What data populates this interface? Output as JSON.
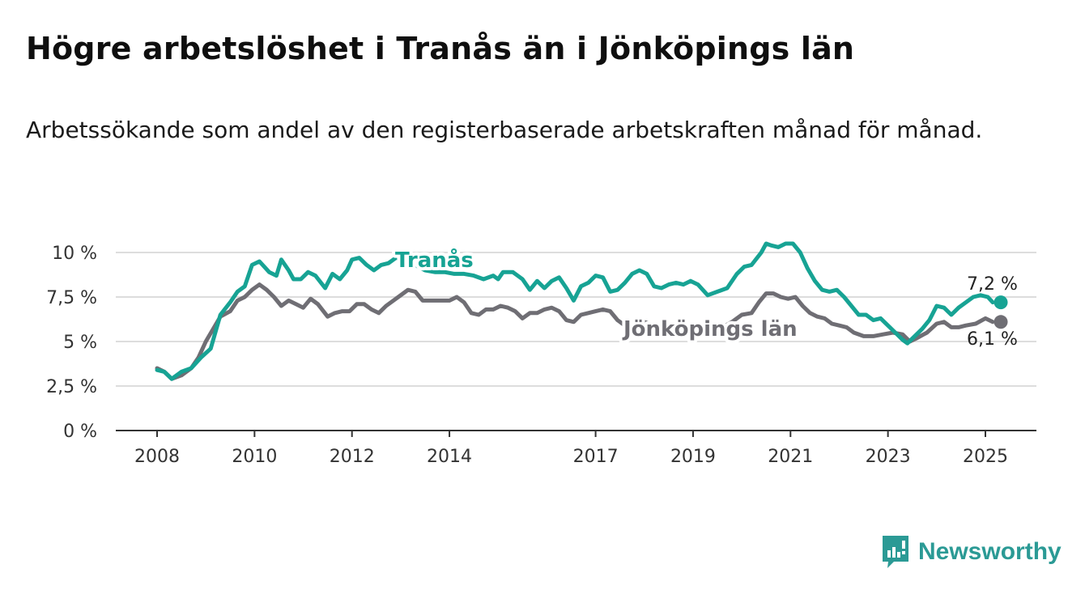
{
  "title": "Högre arbetslöshet i Tranås än i Jönköpings län",
  "subtitle": "Arbetssökande som andel av den registerbaserade arbetskraften månad för månad.",
  "brand": "Newsworthy",
  "colors": {
    "tranas": "#17a394",
    "jonkoping": "#6f6e74",
    "grid": "#dddddd",
    "axis": "#333333",
    "brand": "#2b9a95"
  },
  "chart_data": {
    "type": "line",
    "ylim": [
      0,
      10
    ],
    "yticks": [
      0,
      2.5,
      5,
      7.5,
      10
    ],
    "ytick_labels": [
      "0 %",
      "2,5 %",
      "5 %",
      "7,5 %",
      "10 %"
    ],
    "xticks": [
      2008,
      2010,
      2012,
      2014,
      2017,
      2019,
      2021,
      2023,
      2025
    ],
    "xtick_labels": [
      "2008",
      "2010",
      "2012",
      "2014",
      "2017",
      "2019",
      "2021",
      "2023",
      "2025"
    ],
    "grid": true,
    "series": [
      {
        "name": "Tranås",
        "end_label": "7,2 %",
        "points": [
          [
            2008.0,
            3.4
          ],
          [
            2008.15,
            3.3
          ],
          [
            2008.3,
            2.9
          ],
          [
            2008.5,
            3.3
          ],
          [
            2008.7,
            3.5
          ],
          [
            2008.9,
            4.1
          ],
          [
            2009.1,
            4.6
          ],
          [
            2009.3,
            6.5
          ],
          [
            2009.5,
            7.2
          ],
          [
            2009.65,
            7.8
          ],
          [
            2009.8,
            8.1
          ],
          [
            2009.95,
            9.3
          ],
          [
            2010.1,
            9.5
          ],
          [
            2010.3,
            8.9
          ],
          [
            2010.45,
            8.7
          ],
          [
            2010.55,
            9.6
          ],
          [
            2010.7,
            9.0
          ],
          [
            2010.8,
            8.5
          ],
          [
            2010.95,
            8.5
          ],
          [
            2011.1,
            8.9
          ],
          [
            2011.25,
            8.7
          ],
          [
            2011.45,
            8.0
          ],
          [
            2011.6,
            8.8
          ],
          [
            2011.75,
            8.5
          ],
          [
            2011.9,
            9.0
          ],
          [
            2012.0,
            9.6
          ],
          [
            2012.15,
            9.7
          ],
          [
            2012.3,
            9.3
          ],
          [
            2012.45,
            9.0
          ],
          [
            2012.6,
            9.3
          ],
          [
            2012.75,
            9.4
          ],
          [
            2012.9,
            9.7
          ],
          [
            2013.1,
            9.6
          ],
          [
            2013.3,
            9.3
          ],
          [
            2013.5,
            9.0
          ],
          [
            2013.7,
            8.9
          ],
          [
            2013.9,
            8.9
          ],
          [
            2014.1,
            8.8
          ],
          [
            2014.3,
            8.8
          ],
          [
            2014.5,
            8.7
          ],
          [
            2014.7,
            8.5
          ],
          [
            2014.9,
            8.7
          ],
          [
            2015.0,
            8.5
          ],
          [
            2015.1,
            8.9
          ],
          [
            2015.3,
            8.9
          ],
          [
            2015.5,
            8.5
          ],
          [
            2015.65,
            7.9
          ],
          [
            2015.8,
            8.4
          ],
          [
            2015.95,
            8.0
          ],
          [
            2016.1,
            8.4
          ],
          [
            2016.25,
            8.6
          ],
          [
            2016.4,
            8.0
          ],
          [
            2016.55,
            7.3
          ],
          [
            2016.7,
            8.1
          ],
          [
            2016.85,
            8.3
          ],
          [
            2017.0,
            8.7
          ],
          [
            2017.15,
            8.6
          ],
          [
            2017.3,
            7.8
          ],
          [
            2017.45,
            7.9
          ],
          [
            2017.6,
            8.3
          ],
          [
            2017.75,
            8.8
          ],
          [
            2017.9,
            9.0
          ],
          [
            2018.05,
            8.8
          ],
          [
            2018.2,
            8.1
          ],
          [
            2018.35,
            8.0
          ],
          [
            2018.5,
            8.2
          ],
          [
            2018.65,
            8.3
          ],
          [
            2018.8,
            8.2
          ],
          [
            2018.95,
            8.4
          ],
          [
            2019.1,
            8.2
          ],
          [
            2019.3,
            7.6
          ],
          [
            2019.5,
            7.8
          ],
          [
            2019.7,
            8.0
          ],
          [
            2019.9,
            8.8
          ],
          [
            2020.05,
            9.2
          ],
          [
            2020.2,
            9.3
          ],
          [
            2020.4,
            10.0
          ],
          [
            2020.5,
            10.5
          ],
          [
            2020.6,
            10.4
          ],
          [
            2020.75,
            10.3
          ],
          [
            2020.9,
            10.5
          ],
          [
            2021.05,
            10.5
          ],
          [
            2021.2,
            10.0
          ],
          [
            2021.35,
            9.1
          ],
          [
            2021.5,
            8.4
          ],
          [
            2021.65,
            7.9
          ],
          [
            2021.8,
            7.8
          ],
          [
            2021.95,
            7.9
          ],
          [
            2022.1,
            7.5
          ],
          [
            2022.25,
            7.0
          ],
          [
            2022.4,
            6.5
          ],
          [
            2022.55,
            6.5
          ],
          [
            2022.7,
            6.2
          ],
          [
            2022.85,
            6.3
          ],
          [
            2023.0,
            5.9
          ],
          [
            2023.15,
            5.5
          ],
          [
            2023.3,
            5.1
          ],
          [
            2023.4,
            4.9
          ],
          [
            2023.55,
            5.3
          ],
          [
            2023.7,
            5.7
          ],
          [
            2023.85,
            6.2
          ],
          [
            2024.0,
            7.0
          ],
          [
            2024.15,
            6.9
          ],
          [
            2024.3,
            6.5
          ],
          [
            2024.45,
            6.9
          ],
          [
            2024.6,
            7.2
          ],
          [
            2024.75,
            7.5
          ],
          [
            2024.9,
            7.6
          ],
          [
            2025.05,
            7.5
          ],
          [
            2025.15,
            7.2
          ]
        ]
      },
      {
        "name": "Jönköpings län",
        "end_label": "6,1 %",
        "points": [
          [
            2008.0,
            3.5
          ],
          [
            2008.15,
            3.3
          ],
          [
            2008.3,
            2.9
          ],
          [
            2008.5,
            3.1
          ],
          [
            2008.7,
            3.5
          ],
          [
            2008.85,
            4.1
          ],
          [
            2009.0,
            5.0
          ],
          [
            2009.15,
            5.7
          ],
          [
            2009.3,
            6.4
          ],
          [
            2009.5,
            6.7
          ],
          [
            2009.65,
            7.3
          ],
          [
            2009.8,
            7.5
          ],
          [
            2009.95,
            7.9
          ],
          [
            2010.1,
            8.2
          ],
          [
            2010.25,
            7.9
          ],
          [
            2010.4,
            7.5
          ],
          [
            2010.55,
            7.0
          ],
          [
            2010.7,
            7.3
          ],
          [
            2010.85,
            7.1
          ],
          [
            2011.0,
            6.9
          ],
          [
            2011.15,
            7.4
          ],
          [
            2011.3,
            7.1
          ],
          [
            2011.5,
            6.4
          ],
          [
            2011.65,
            6.6
          ],
          [
            2011.8,
            6.7
          ],
          [
            2011.95,
            6.7
          ],
          [
            2012.1,
            7.1
          ],
          [
            2012.25,
            7.1
          ],
          [
            2012.4,
            6.8
          ],
          [
            2012.55,
            6.6
          ],
          [
            2012.7,
            7.0
          ],
          [
            2012.85,
            7.3
          ],
          [
            2013.0,
            7.6
          ],
          [
            2013.15,
            7.9
          ],
          [
            2013.3,
            7.8
          ],
          [
            2013.45,
            7.3
          ],
          [
            2013.6,
            7.3
          ],
          [
            2013.8,
            7.3
          ],
          [
            2014.0,
            7.3
          ],
          [
            2014.15,
            7.5
          ],
          [
            2014.3,
            7.2
          ],
          [
            2014.45,
            6.6
          ],
          [
            2014.6,
            6.5
          ],
          [
            2014.75,
            6.8
          ],
          [
            2014.9,
            6.8
          ],
          [
            2015.05,
            7.0
          ],
          [
            2015.2,
            6.9
          ],
          [
            2015.35,
            6.7
          ],
          [
            2015.5,
            6.3
          ],
          [
            2015.65,
            6.6
          ],
          [
            2015.8,
            6.6
          ],
          [
            2015.95,
            6.8
          ],
          [
            2016.1,
            6.9
          ],
          [
            2016.25,
            6.7
          ],
          [
            2016.4,
            6.2
          ],
          [
            2016.55,
            6.1
          ],
          [
            2016.7,
            6.5
          ],
          [
            2016.85,
            6.6
          ],
          [
            2017.0,
            6.7
          ],
          [
            2017.15,
            6.8
          ],
          [
            2017.3,
            6.7
          ],
          [
            2017.45,
            6.2
          ],
          [
            2017.6,
            5.9
          ],
          [
            2017.8,
            6.0
          ],
          [
            2018.0,
            6.1
          ],
          [
            2018.2,
            5.9
          ],
          [
            2018.4,
            5.8
          ],
          [
            2018.6,
            5.9
          ],
          [
            2018.8,
            5.9
          ],
          [
            2019.0,
            5.7
          ],
          [
            2019.2,
            5.9
          ],
          [
            2019.4,
            5.6
          ],
          [
            2019.6,
            5.8
          ],
          [
            2019.8,
            6.1
          ],
          [
            2020.0,
            6.5
          ],
          [
            2020.2,
            6.6
          ],
          [
            2020.35,
            7.2
          ],
          [
            2020.5,
            7.7
          ],
          [
            2020.65,
            7.7
          ],
          [
            2020.8,
            7.5
          ],
          [
            2020.95,
            7.4
          ],
          [
            2021.1,
            7.5
          ],
          [
            2021.25,
            7.0
          ],
          [
            2021.4,
            6.6
          ],
          [
            2021.55,
            6.4
          ],
          [
            2021.7,
            6.3
          ],
          [
            2021.85,
            6.0
          ],
          [
            2022.0,
            5.9
          ],
          [
            2022.15,
            5.8
          ],
          [
            2022.3,
            5.5
          ],
          [
            2022.5,
            5.3
          ],
          [
            2022.7,
            5.3
          ],
          [
            2022.9,
            5.4
          ],
          [
            2023.1,
            5.5
          ],
          [
            2023.3,
            5.4
          ],
          [
            2023.45,
            5.0
          ],
          [
            2023.6,
            5.2
          ],
          [
            2023.8,
            5.5
          ],
          [
            2024.0,
            6.0
          ],
          [
            2024.15,
            6.1
          ],
          [
            2024.3,
            5.8
          ],
          [
            2024.45,
            5.8
          ],
          [
            2024.6,
            5.9
          ],
          [
            2024.8,
            6.0
          ],
          [
            2025.0,
            6.3
          ],
          [
            2025.15,
            6.1
          ]
        ]
      }
    ]
  }
}
